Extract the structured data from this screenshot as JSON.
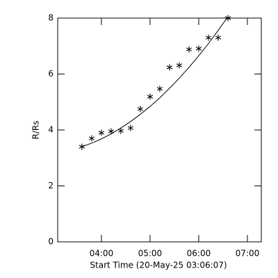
{
  "chart_data": {
    "type": "scatter",
    "xlabel": "Start Time (20-May-25 03:06:07)",
    "ylabel": "R/Rs",
    "x": [
      3.6,
      3.8,
      4.0,
      4.2,
      4.4,
      4.6,
      4.8,
      5.0,
      5.2,
      5.4,
      5.6,
      5.8,
      6.0,
      6.2,
      6.4,
      6.6
    ],
    "series": [
      {
        "marker": "asterisk",
        "color": "#000000",
        "values": [
          3.4,
          3.7,
          3.9,
          3.95,
          3.97,
          4.07,
          4.75,
          5.19,
          5.47,
          6.24,
          6.31,
          6.88,
          6.91,
          7.3,
          7.3,
          8.0
        ]
      },
      {
        "style": "line",
        "color": "#000000",
        "values": [
          3.4,
          3.53,
          3.68,
          3.86,
          4.07,
          4.3,
          4.56,
          4.84,
          5.15,
          5.49,
          5.85,
          6.24,
          6.65,
          7.09,
          7.56,
          8.05
        ]
      }
    ],
    "xlim": [
      3.102,
      7.286
    ],
    "xticks": [
      {
        "value": 4,
        "label": "04:00"
      },
      {
        "value": 5,
        "label": "05:00"
      },
      {
        "value": 6,
        "label": "06:00"
      },
      {
        "value": 7,
        "label": "07:00"
      }
    ],
    "ylim": [
      0,
      8
    ],
    "yticks": [
      0,
      2,
      4,
      6,
      8
    ]
  }
}
